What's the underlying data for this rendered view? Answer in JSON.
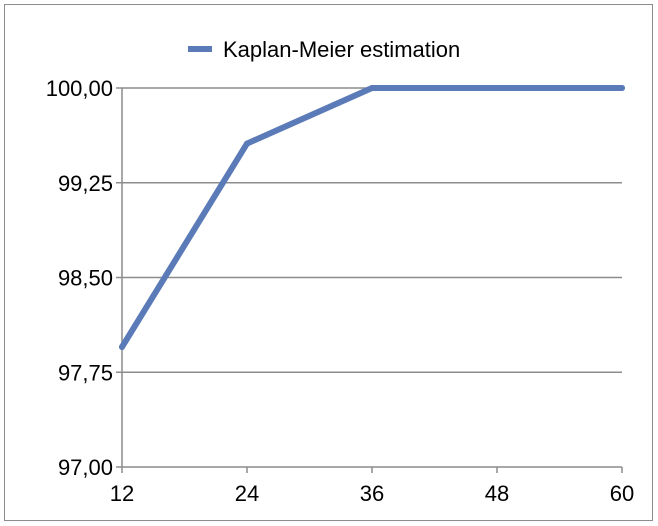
{
  "chart_data": {
    "type": "line",
    "title": "",
    "xlabel": "",
    "ylabel": "",
    "x": [
      12,
      24,
      36,
      48,
      60
    ],
    "x_tick_labels": [
      "12",
      "24",
      "36",
      "48",
      "60"
    ],
    "y_tick_labels": [
      "97,00",
      "97,75",
      "98,50",
      "99,25",
      "100,00"
    ],
    "ylim": [
      97.0,
      100.0
    ],
    "xlim": [
      12,
      60
    ],
    "grid": "horizontal",
    "legend_position": "top",
    "series": [
      {
        "name": "Kaplan-Meier estimation",
        "color": "#5b7bb8",
        "values": [
          97.95,
          99.56,
          100.0,
          100.0,
          100.0
        ]
      }
    ]
  }
}
